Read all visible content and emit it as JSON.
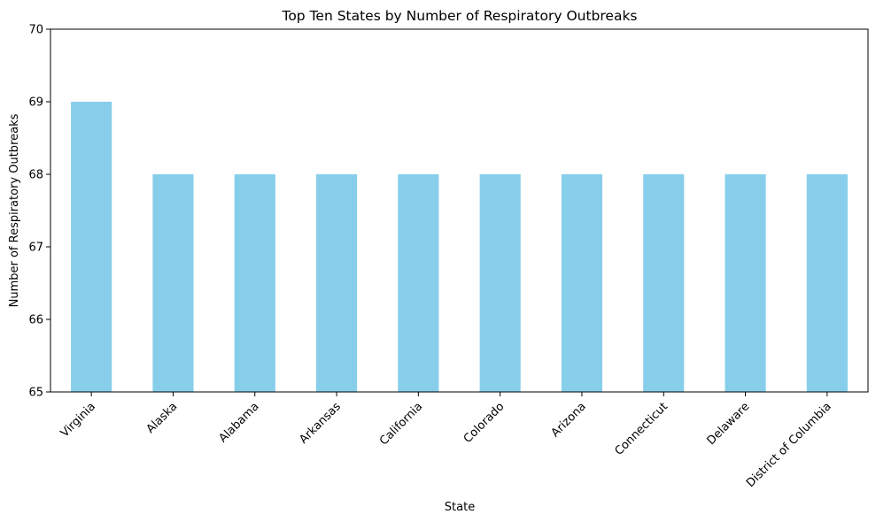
{
  "chart_data": {
    "type": "bar",
    "title": "Top Ten States by Number of Respiratory Outbreaks",
    "xlabel": "State",
    "ylabel": "Number of Respiratory Outbreaks",
    "categories": [
      "Virginia",
      "Alaska",
      "Alabama",
      "Arkansas",
      "California",
      "Colorado",
      "Arizona",
      "Connecticut",
      "Delaware",
      "District of Columbia"
    ],
    "values": [
      69,
      68,
      68,
      68,
      68,
      68,
      68,
      68,
      68,
      68
    ],
    "ylim": [
      65,
      70
    ],
    "yticks": [
      65,
      66,
      67,
      68,
      69,
      70
    ],
    "grid": false,
    "bar_color": "#87ceeb"
  }
}
